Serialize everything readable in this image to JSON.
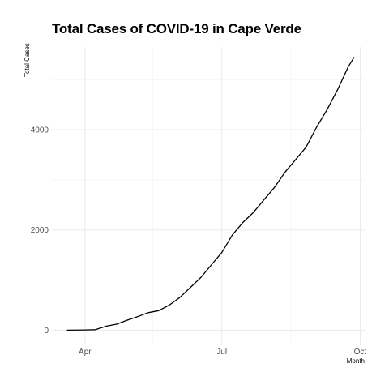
{
  "chart_data": {
    "type": "line",
    "title": "Total Cases of COVID-19 in Cape Verde",
    "xlabel": "Month",
    "ylabel": "Total Cases",
    "x_ticks": [
      "Apr",
      "Jul",
      "Oct"
    ],
    "y_ticks": [
      0,
      2000,
      4000
    ],
    "grid": true,
    "legend": "none",
    "line_color": "#000000",
    "x": [
      "2020-03-20",
      "2020-04-01",
      "2020-04-08",
      "2020-04-15",
      "2020-04-22",
      "2020-04-29",
      "2020-05-06",
      "2020-05-13",
      "2020-05-20",
      "2020-05-27",
      "2020-06-03",
      "2020-06-10",
      "2020-06-17",
      "2020-06-24",
      "2020-07-01",
      "2020-07-08",
      "2020-07-15",
      "2020-07-22",
      "2020-07-29",
      "2020-08-05",
      "2020-08-12",
      "2020-08-19",
      "2020-08-26",
      "2020-09-02",
      "2020-09-09",
      "2020-09-16",
      "2020-09-23",
      "2020-09-27"
    ],
    "y": [
      0,
      5,
      10,
      80,
      120,
      200,
      270,
      350,
      390,
      500,
      650,
      850,
      1050,
      1300,
      1550,
      1900,
      2150,
      2350,
      2600,
      2850,
      3150,
      3400,
      3650,
      4050,
      4400,
      4800,
      5250,
      5450
    ]
  }
}
